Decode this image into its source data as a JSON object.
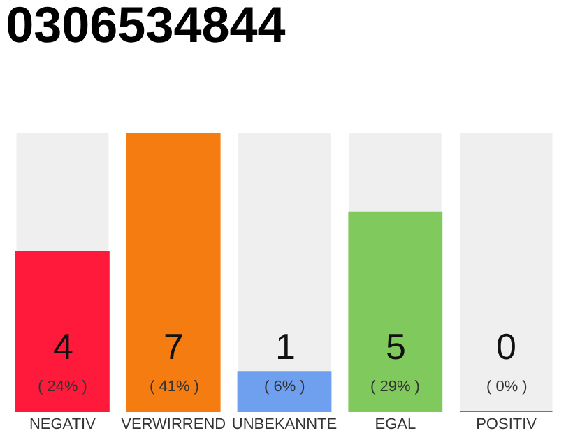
{
  "chart_data": {
    "type": "bar",
    "title": "0306534844",
    "categories": [
      "NEGATIV",
      "VERWIRREND",
      "UNBEKANNTE",
      "EGAL",
      "POSITIV"
    ],
    "values": [
      4,
      7,
      1,
      5,
      0
    ],
    "colors": [
      "#ff1a3c",
      "#f47c10",
      "#6fa0f0",
      "#80c95c",
      "#2ca05a"
    ],
    "value_labels": [
      "4\n( 24% )",
      "7\n( 41% )",
      "1\n( 6% )",
      "5\n( 29% )",
      "0\n( 0% )"
    ],
    "grid": false,
    "legend": false
  }
}
